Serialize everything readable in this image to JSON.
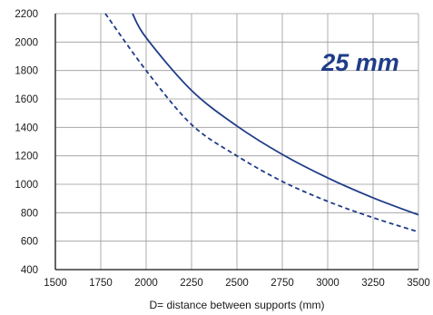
{
  "chart_data": {
    "type": "line",
    "xlabel": "D= distance between supports (mm)",
    "ylabel": "",
    "xlim": [
      1500,
      3500
    ],
    "ylim": [
      400,
      2200
    ],
    "xticks": [
      "1500",
      "1750",
      "2000",
      "2250",
      "2500",
      "2750",
      "3000",
      "3250",
      "3500"
    ],
    "yticks": [
      "400",
      "600",
      "800",
      "1000",
      "1200",
      "1400",
      "1600",
      "1800",
      "2000",
      "2200"
    ],
    "grid": true,
    "annotation": "25 mm",
    "line_color": "#1f3c88",
    "series": [
      {
        "style": "solid",
        "x": [
          1925,
          2000,
          2250,
          2500,
          2750,
          3000,
          3250,
          3500
        ],
        "y": [
          2200,
          2030,
          1660,
          1410,
          1210,
          1045,
          905,
          785
        ]
      },
      {
        "style": "dashed",
        "x": [
          1775,
          2000,
          2250,
          2500,
          2750,
          3000,
          3250,
          3500
        ],
        "y": [
          2200,
          1800,
          1420,
          1200,
          1020,
          880,
          765,
          665
        ]
      }
    ]
  }
}
